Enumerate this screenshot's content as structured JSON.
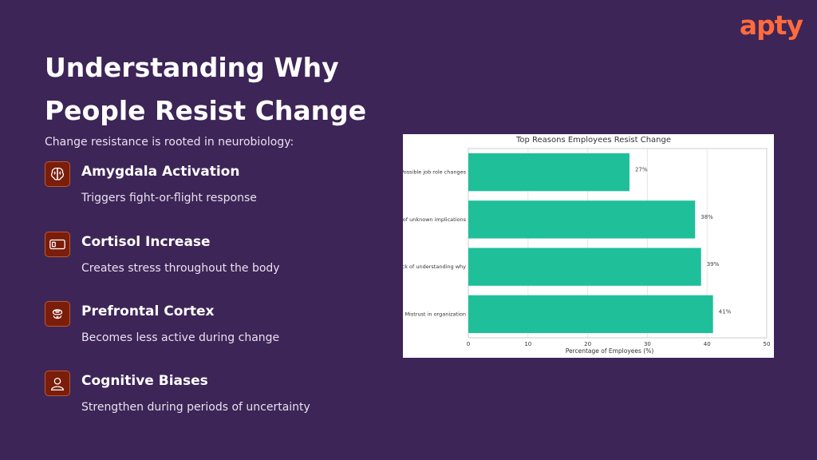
{
  "brand": {
    "logo_text": "apty",
    "accent": "#ff6b3d",
    "background": "#3d2557"
  },
  "header": {
    "title_line1": "Understanding Why",
    "title_line2": "People Resist Change",
    "subtitle": "Change resistance is rooted in neurobiology:"
  },
  "items": [
    {
      "title": "Amygdala Activation",
      "description": "Triggers fight-or-flight response",
      "icon": "brain-icon"
    },
    {
      "title": "Cortisol Increase",
      "description": "Creates stress throughout the body",
      "icon": "battery-icon"
    },
    {
      "title": "Prefrontal Cortex",
      "description": "Becomes less active during change",
      "icon": "head-icon"
    },
    {
      "title": "Cognitive Biases",
      "description": "Strengthen during periods of uncertainty",
      "icon": "person-icon"
    }
  ],
  "chart_data": {
    "type": "bar",
    "orientation": "horizontal",
    "title": "Top Reasons Employees Resist Change",
    "xlabel": "Percentage of Employees (%)",
    "ylabel": "",
    "categories": [
      "Possible job role changes",
      "ar of unknown implications",
      "Lack of understanding why",
      "Mistrust in organization"
    ],
    "values": [
      27,
      38,
      39,
      41
    ],
    "data_labels": [
      "27%",
      "38%",
      "39%",
      "41%"
    ],
    "xlim": [
      0,
      50
    ],
    "xticks": [
      0,
      10,
      20,
      30,
      40,
      50
    ],
    "bar_color": "#1fbf9a",
    "grid": true
  }
}
